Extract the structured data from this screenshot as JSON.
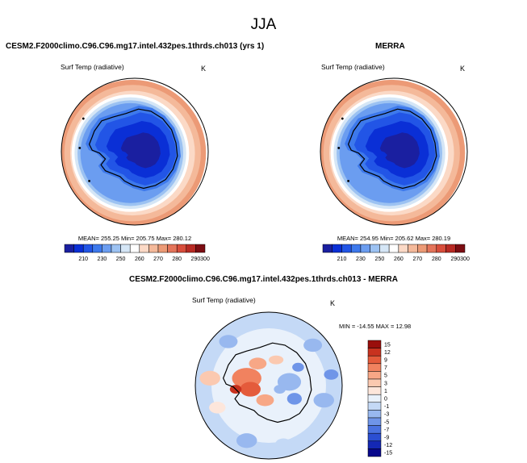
{
  "page": {
    "title": "JJA"
  },
  "panels": [
    {
      "title": "CESM2.F2000climo.C96.C96.mg17.intel.432pes.1thrds.ch013 (yrs 1)",
      "variable": "Surf Temp (radiative)",
      "units": "K",
      "stats": "MEAN= 255.25  Min= 205.75  Max= 280.12"
    },
    {
      "title": "MERRA",
      "variable": "Surf Temp (radiative)",
      "units": "K",
      "stats": "MEAN= 254.95  Min= 205.62  Max= 280.19"
    },
    {
      "title": "CESM2.F2000climo.C96.C96.mg17.intel.432pes.1thrds.ch013 - MERRA",
      "variable": "Surf Temp (radiative)",
      "units": "K",
      "stats": "MIN = -14.55 MAX =  12.98"
    }
  ],
  "colors": {
    "abs_levels": [
      "#1a1fa0",
      "#0a2fd6",
      "#2255e6",
      "#3d79ec",
      "#6b9df0",
      "#9cc2f2",
      "#d5e6f6",
      "#ffffff",
      "#fbd9c6",
      "#f4b99a",
      "#ec9a76",
      "#e4745a",
      "#d84d3b",
      "#b82a23",
      "#7c0d12"
    ],
    "diff_levels": [
      "#08088c",
      "#1428b4",
      "#2b4fd2",
      "#4a72e0",
      "#6f95e8",
      "#98b8ef",
      "#c4d9f6",
      "#e9f1fb",
      "#fde6db",
      "#fbc9b0",
      "#f7a786",
      "#f1825f",
      "#e45b3b",
      "#c8321f",
      "#9a0f0c"
    ]
  },
  "chart_data": [
    {
      "type": "heatmap",
      "title": "CESM2.F2000climo.C96.C96.mg17.intel.432pes.1thrds.ch013 (yrs 1)",
      "subtitle": "Surf Temp (radiative)",
      "units": "K",
      "projection": "south polar stereographic",
      "colorbar_ticks": [
        210,
        230,
        250,
        260,
        270,
        280,
        290,
        300
      ],
      "colorbar_levels": [
        200,
        210,
        220,
        230,
        240,
        250,
        255,
        260,
        265,
        270,
        275,
        280,
        285,
        290,
        300
      ],
      "stats": {
        "mean": 255.25,
        "min": 205.75,
        "max": 280.12
      }
    },
    {
      "type": "heatmap",
      "title": "MERRA",
      "subtitle": "Surf Temp (radiative)",
      "units": "K",
      "projection": "south polar stereographic",
      "colorbar_ticks": [
        210,
        230,
        250,
        260,
        270,
        280,
        290,
        300
      ],
      "colorbar_levels": [
        200,
        210,
        220,
        230,
        240,
        250,
        255,
        260,
        265,
        270,
        275,
        280,
        285,
        290,
        300
      ],
      "stats": {
        "mean": 254.95,
        "min": 205.62,
        "max": 280.19
      }
    },
    {
      "type": "heatmap",
      "title": "CESM2.F2000climo.C96.C96.mg17.intel.432pes.1thrds.ch013 - MERRA",
      "subtitle": "Surf Temp (radiative)",
      "units": "K",
      "projection": "south polar stereographic",
      "colorbar_ticks": [
        15,
        12,
        9,
        7,
        5,
        3,
        1,
        0,
        -1,
        -3,
        -5,
        -7,
        -9,
        -12,
        -15
      ],
      "stats": {
        "min": -14.55,
        "max": 12.98
      }
    }
  ]
}
